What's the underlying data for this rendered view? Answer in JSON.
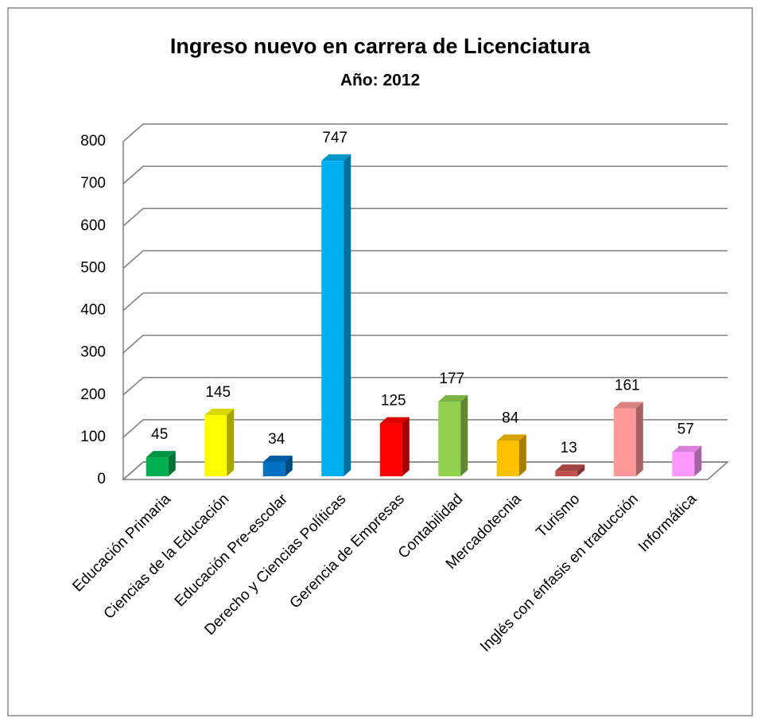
{
  "chart_data": {
    "type": "bar",
    "title": "Ingreso nuevo en carrera de Licenciatura",
    "subtitle": "Año: 2012",
    "categories": [
      "Educación Primaria",
      "Ciencias de la Educación",
      "Educación Pre-escolar",
      "Derecho y Ciencias Políticas",
      "Gerencia de Empresas",
      "Contabilidad",
      "Mercadotecnia",
      "Turismo",
      "Inglés con énfasis en traducción",
      "Informática"
    ],
    "values": [
      45,
      145,
      34,
      747,
      125,
      177,
      84,
      13,
      161,
      57
    ],
    "colors": [
      "#00b050",
      "#ffff00",
      "#0070c0",
      "#00b0f0",
      "#ff0000",
      "#92d050",
      "#ffc000",
      "#c0504d",
      "#ff9999",
      "#ff99ff"
    ],
    "ylim": [
      0,
      800
    ],
    "yticks": [
      0,
      100,
      200,
      300,
      400,
      500,
      600,
      700,
      800
    ],
    "grid": true
  }
}
